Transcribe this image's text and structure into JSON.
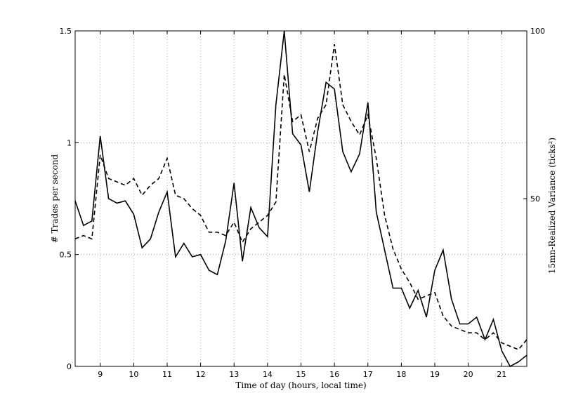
{
  "chart_data": {
    "type": "line",
    "title": "",
    "xlabel": "Time of day (hours, local time)",
    "ylabel": "# Trades per second",
    "y2label": "15mn-Realized Variance (ticks²)",
    "xlim": [
      8.25,
      21.75
    ],
    "ylim": [
      0,
      1.5
    ],
    "y2lim": [
      0,
      100
    ],
    "xticks": [
      9,
      10,
      11,
      12,
      13,
      14,
      15,
      16,
      17,
      18,
      19,
      20,
      21
    ],
    "yticks": [
      0,
      0.5,
      1,
      1.5
    ],
    "y2ticks": [
      50,
      100
    ],
    "grid": true,
    "legend": "none",
    "x": [
      8.25,
      8.5,
      8.75,
      9,
      9.25,
      9.5,
      9.75,
      10,
      10.25,
      10.5,
      10.75,
      11,
      11.25,
      11.5,
      11.75,
      12,
      12.25,
      12.5,
      12.75,
      13,
      13.25,
      13.5,
      13.75,
      14,
      14.25,
      14.5,
      14.75,
      15,
      15.25,
      15.5,
      15.75,
      16,
      16.25,
      16.5,
      16.75,
      17,
      17.25,
      17.5,
      17.75,
      18,
      18.25,
      18.5,
      18.75,
      19,
      19.25,
      19.5,
      19.75,
      20,
      20.25,
      20.5,
      20.75,
      21,
      21.25,
      21.5,
      21.75
    ],
    "series": [
      {
        "axis": "left",
        "style": "solid",
        "color": "#000000",
        "values": [
          0.74,
          0.63,
          0.65,
          1.03,
          0.75,
          0.73,
          0.74,
          0.68,
          0.53,
          0.57,
          0.69,
          0.78,
          0.49,
          0.55,
          0.49,
          0.5,
          0.43,
          0.41,
          0.56,
          0.82,
          0.47,
          0.71,
          0.62,
          0.58,
          1.17,
          1.5,
          1.04,
          0.99,
          0.78,
          1.05,
          1.27,
          1.24,
          0.96,
          0.87,
          0.95,
          1.18,
          0.69,
          0.52,
          0.35,
          0.35,
          0.26,
          0.34,
          0.22,
          0.43,
          0.52,
          0.3,
          0.19,
          0.19,
          0.22,
          0.12,
          0.21,
          0.07,
          0.0,
          0.02,
          0.05
        ]
      },
      {
        "axis": "right",
        "style": "dashed",
        "color": "#000000",
        "values": [
          38,
          39,
          38,
          63,
          56,
          55,
          54,
          56,
          51,
          54,
          56,
          62,
          51,
          50,
          47,
          45,
          40,
          40,
          39,
          43,
          37,
          41,
          43,
          45,
          49,
          87,
          73,
          75,
          64,
          74,
          78,
          96,
          78,
          73,
          69,
          75,
          62,
          45,
          35,
          29,
          25,
          20,
          21,
          22,
          15,
          12,
          11,
          10,
          10,
          8,
          10,
          7,
          6,
          5,
          8
        ]
      }
    ]
  }
}
